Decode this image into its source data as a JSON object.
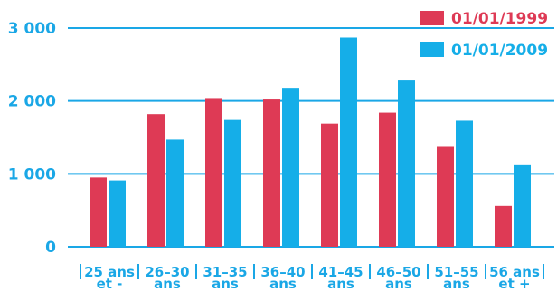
{
  "colors": {
    "series_1999": "#de3a55",
    "series_2009": "#15aee8",
    "axis": "#1aa7e6",
    "background": "#ffffff"
  },
  "chart_data": {
    "type": "bar",
    "title": "",
    "xlabel": "",
    "ylabel": "",
    "ylim": [
      0,
      3000
    ],
    "yticks": [
      0,
      1000,
      2000,
      3000
    ],
    "ytick_labels": [
      "0",
      "1 000",
      "2 000",
      "3 000"
    ],
    "grid": true,
    "legend_position": "top-right",
    "categories": [
      "25 ans et -",
      "26–30 ans",
      "31–35 ans",
      "36–40 ans",
      "41–45 ans",
      "46–50 ans",
      "51–55 ans",
      "56 ans et +"
    ],
    "category_lines": [
      [
        "25 ans",
        "et -"
      ],
      [
        "26–30",
        "ans"
      ],
      [
        "31–35",
        "ans"
      ],
      [
        "36–40",
        "ans"
      ],
      [
        "41–45",
        "ans"
      ],
      [
        "46–50",
        "ans"
      ],
      [
        "51–55",
        "ans"
      ],
      [
        "56 ans",
        "et +"
      ]
    ],
    "series": [
      {
        "name": "01/01/1999",
        "values": [
          950,
          1820,
          2040,
          2020,
          1690,
          1840,
          1370,
          560
        ]
      },
      {
        "name": "01/01/2009",
        "values": [
          910,
          1470,
          1740,
          2180,
          2870,
          2280,
          1730,
          1130
        ]
      }
    ]
  }
}
